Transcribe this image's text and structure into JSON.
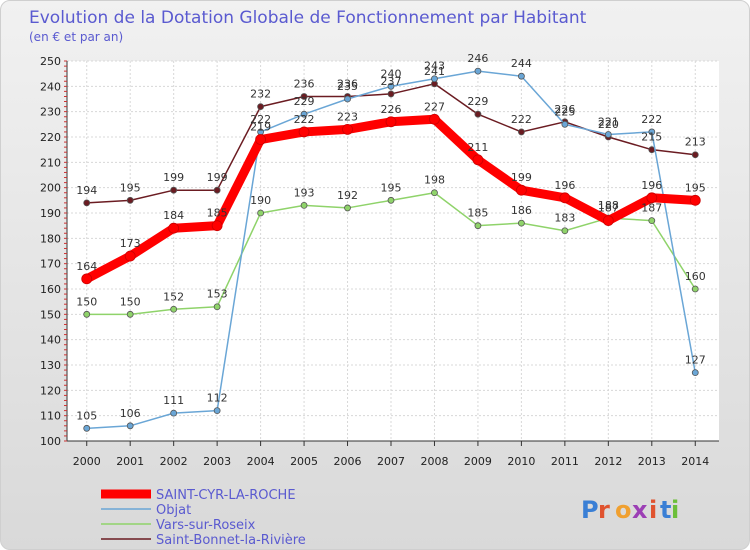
{
  "chart_data": {
    "type": "line",
    "title": "Evolution de la Dotation Globale de Fonctionnement par Habitant",
    "subtitle": "(en € et par an)",
    "xlabel": "",
    "ylabel": "",
    "x": [
      "2000",
      "2001",
      "2002",
      "2003",
      "2004",
      "2005",
      "2006",
      "2007",
      "2008",
      "2009",
      "2010",
      "2011",
      "2012",
      "2013",
      "2014"
    ],
    "ylim": [
      100,
      250
    ],
    "yticks": [
      "100",
      "110",
      "120",
      "130",
      "140",
      "150",
      "160",
      "170",
      "180",
      "190",
      "200",
      "210",
      "220",
      "230",
      "240",
      "250"
    ],
    "grid": true,
    "legend_position": "bottom-left",
    "series": [
      {
        "name": "Saint-Bonnet-la-Rivière",
        "color": "#6b1c22",
        "values": [
          194,
          195,
          199,
          199,
          232,
          236,
          236,
          237,
          241,
          229,
          222,
          226,
          220,
          215,
          213
        ],
        "labels": [
          "194",
          "195",
          "199",
          "199",
          "232",
          "236",
          "236",
          "237",
          "241",
          "229",
          "222",
          "226",
          "220",
          "215",
          "213"
        ]
      },
      {
        "name": "Vars-sur-Roseix",
        "color": "#8fd36a",
        "values": [
          150,
          150,
          152,
          153,
          190,
          193,
          192,
          195,
          198,
          185,
          186,
          183,
          188,
          187,
          160
        ],
        "labels": [
          "150",
          "150",
          "152",
          "153",
          "190",
          "193",
          "192",
          "195",
          "198",
          "185",
          "186",
          "183",
          "188",
          "187",
          "160"
        ]
      },
      {
        "name": "Objat",
        "color": "#6aa6d6",
        "values": [
          105,
          106,
          111,
          112,
          222,
          229,
          235,
          240,
          243,
          246,
          244,
          225,
          221,
          222,
          127
        ],
        "labels": [
          "105",
          "106",
          "111",
          "112",
          "222",
          "229",
          "235",
          "240",
          "243",
          "246",
          "244",
          "225",
          "221",
          "222",
          "127"
        ]
      },
      {
        "name": "SAINT-CYR-LA-ROCHE",
        "color": "#ff0000",
        "values": [
          164,
          173,
          184,
          185,
          219,
          222,
          223,
          226,
          227,
          211,
          199,
          196,
          187,
          196,
          195
        ],
        "labels": [
          "164",
          "173",
          "184",
          "185",
          "219",
          "222",
          "223",
          "226",
          "227",
          "211",
          "199",
          "196",
          "187",
          "196",
          "195"
        ]
      }
    ],
    "legend_order": [
      "SAINT-CYR-LA-ROCHE",
      "Objat",
      "Vars-sur-Roseix",
      "Saint-Bonnet-la-Rivière"
    ],
    "logo_text": "Proxiti"
  }
}
